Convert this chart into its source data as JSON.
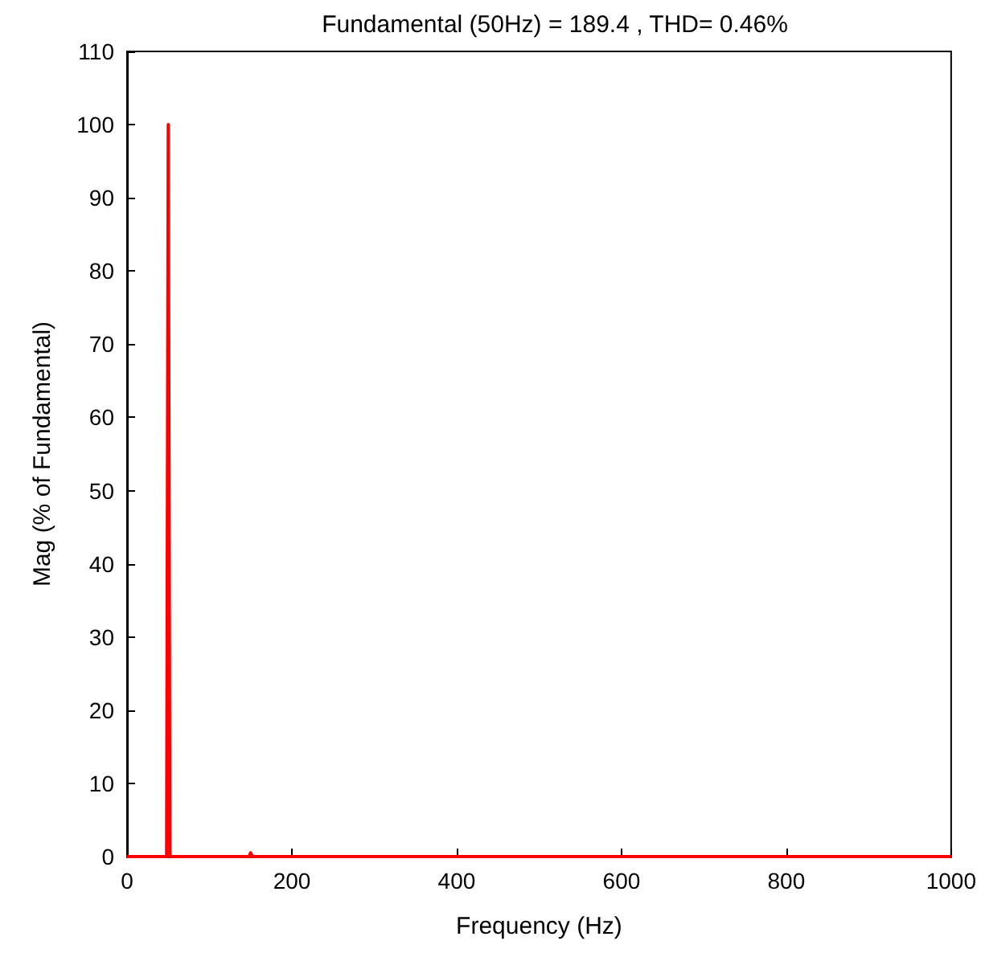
{
  "chart_data": {
    "type": "line",
    "title": "Fundamental (50Hz) = 189.4 , THD= 0.46%",
    "xlabel": "Frequency (Hz)",
    "ylabel": "Mag (% of Fundamental)",
    "series": [
      {
        "color": "#ff0000",
        "x": [
          0,
          48,
          50,
          52,
          148,
          150,
          152,
          1000
        ],
        "values": [
          0,
          0,
          100,
          0,
          0,
          0.5,
          0,
          0
        ]
      }
    ],
    "xlim": [
      0,
      1000
    ],
    "xticks": [
      0,
      200,
      400,
      600,
      800,
      1000
    ],
    "ylim": [
      0,
      110
    ],
    "yticks": [
      0,
      10,
      20,
      30,
      40,
      50,
      60,
      70,
      80,
      90,
      100,
      110
    ],
    "grid": false,
    "marker": "none",
    "line_style": "solid"
  }
}
